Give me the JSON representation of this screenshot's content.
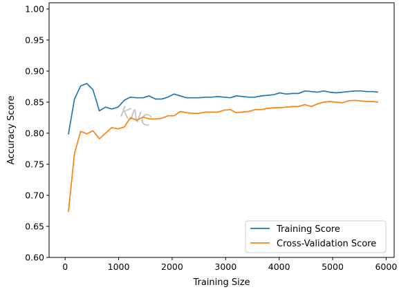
{
  "chart_data": {
    "type": "line",
    "xlabel": "Training Size",
    "ylabel": "Accuracy Score",
    "xlim": [
      -300,
      6150
    ],
    "ylim": [
      0.6,
      1.01
    ],
    "xticks": [
      0,
      1000,
      2000,
      3000,
      4000,
      5000,
      6000
    ],
    "xtick_labels": [
      "0",
      "1000",
      "2000",
      "3000",
      "4000",
      "5000",
      "6000"
    ],
    "yticks": [
      0.6,
      0.65,
      0.7,
      0.75,
      0.8,
      0.85,
      0.9,
      0.95,
      1.0
    ],
    "ytick_labels": [
      "0.60",
      "0.65",
      "0.70",
      "0.75",
      "0.80",
      "0.85",
      "0.90",
      "0.95",
      "1.00"
    ],
    "grid": false,
    "legend_position": "lower-right",
    "watermark": "KNC",
    "x": [
      60,
      175,
      290,
      405,
      520,
      640,
      755,
      870,
      990,
      1105,
      1220,
      1340,
      1455,
      1570,
      1690,
      1805,
      1920,
      2035,
      2155,
      2270,
      2385,
      2500,
      2620,
      2735,
      2850,
      2970,
      3085,
      3200,
      3315,
      3435,
      3550,
      3665,
      3785,
      3900,
      4015,
      4130,
      4250,
      4365,
      4480,
      4600,
      4715,
      4830,
      4945,
      5065,
      5180,
      5295,
      5410,
      5530,
      5645,
      5760,
      5850
    ],
    "series": [
      {
        "name": "Training Score",
        "color": "#1f77b4",
        "values": [
          0.798,
          0.855,
          0.876,
          0.88,
          0.87,
          0.836,
          0.842,
          0.839,
          0.842,
          0.853,
          0.858,
          0.857,
          0.857,
          0.86,
          0.855,
          0.855,
          0.858,
          0.863,
          0.86,
          0.857,
          0.857,
          0.857,
          0.858,
          0.858,
          0.859,
          0.858,
          0.857,
          0.86,
          0.859,
          0.858,
          0.858,
          0.86,
          0.861,
          0.862,
          0.865,
          0.863,
          0.864,
          0.864,
          0.868,
          0.867,
          0.866,
          0.868,
          0.866,
          0.865,
          0.866,
          0.867,
          0.868,
          0.868,
          0.867,
          0.867,
          0.866
        ]
      },
      {
        "name": "Cross-Validation Score",
        "color": "#ff7f0e",
        "values": [
          0.673,
          0.767,
          0.803,
          0.799,
          0.804,
          0.791,
          0.8,
          0.809,
          0.807,
          0.81,
          0.825,
          0.821,
          0.826,
          0.823,
          0.823,
          0.824,
          0.828,
          0.828,
          0.835,
          0.833,
          0.832,
          0.832,
          0.834,
          0.834,
          0.834,
          0.837,
          0.838,
          0.833,
          0.834,
          0.835,
          0.838,
          0.838,
          0.84,
          0.841,
          0.841,
          0.842,
          0.843,
          0.843,
          0.846,
          0.843,
          0.847,
          0.85,
          0.851,
          0.85,
          0.849,
          0.852,
          0.853,
          0.852,
          0.851,
          0.851,
          0.85
        ]
      }
    ]
  }
}
